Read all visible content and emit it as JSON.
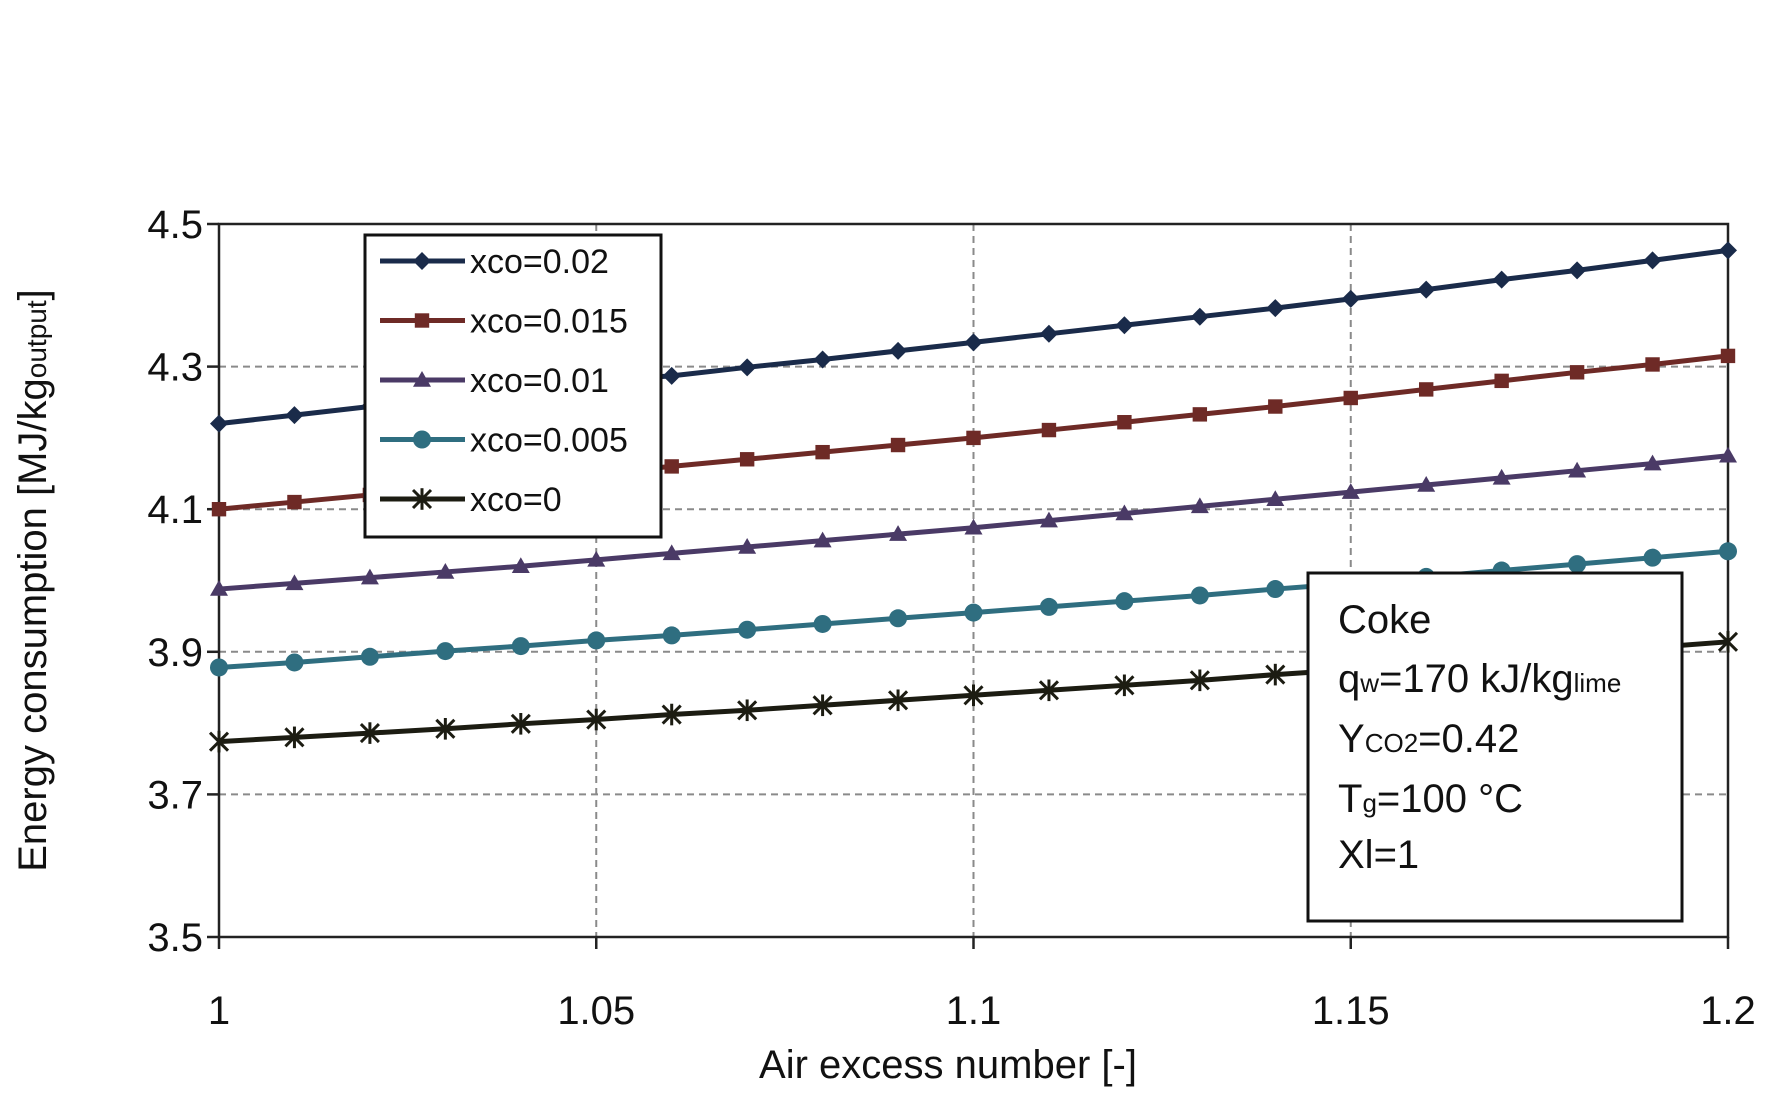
{
  "chart_data": {
    "type": "line",
    "xlabel": "Air excess number [-]",
    "ylabel": {
      "main": "Energy consumption [MJ/kg",
      "sub": "output",
      "tail": "]"
    },
    "xlim": [
      1,
      1.2
    ],
    "ylim": [
      3.5,
      4.5
    ],
    "xticks": [
      1,
      1.05,
      1.1,
      1.15,
      1.2
    ],
    "xtick_labels": [
      "1",
      "1.05",
      "1.1",
      "1.15",
      "1.2"
    ],
    "yticks": [
      3.5,
      3.7,
      3.9,
      4.1,
      4.3,
      4.5
    ],
    "ytick_labels": [
      "3.5",
      "3.7",
      "3.9",
      "4.1",
      "4.3",
      "4.5"
    ],
    "grid": true,
    "legend_position": "top-left",
    "x": [
      1.0,
      1.01,
      1.02,
      1.03,
      1.04,
      1.05,
      1.06,
      1.07,
      1.08,
      1.09,
      1.1,
      1.11,
      1.12,
      1.13,
      1.14,
      1.15,
      1.16,
      1.17,
      1.18,
      1.19,
      1.2
    ],
    "series": [
      {
        "name": "xco=0.02",
        "color": "#1a2b4a",
        "marker": "diamond",
        "values": [
          4.22,
          4.232,
          4.244,
          4.256,
          4.268,
          4.28,
          4.287,
          4.299,
          4.31,
          4.322,
          4.334,
          4.346,
          4.358,
          4.37,
          4.382,
          4.395,
          4.408,
          4.422,
          4.435,
          4.449,
          4.463
        ]
      },
      {
        "name": "xco=0.015",
        "color": "#6e2a26",
        "marker": "square",
        "values": [
          4.1,
          4.11,
          4.12,
          4.13,
          4.14,
          4.15,
          4.16,
          4.17,
          4.18,
          4.19,
          4.2,
          4.211,
          4.222,
          4.233,
          4.244,
          4.256,
          4.268,
          4.28,
          4.292,
          4.303,
          4.315
        ]
      },
      {
        "name": "xco=0.01",
        "color": "#4a3a66",
        "marker": "triangle",
        "values": [
          3.988,
          3.996,
          4.004,
          4.012,
          4.02,
          4.029,
          4.038,
          4.047,
          4.056,
          4.065,
          4.074,
          4.084,
          4.094,
          4.104,
          4.114,
          4.124,
          4.134,
          4.144,
          4.154,
          4.164,
          4.175
        ]
      },
      {
        "name": "xco=0.005",
        "color": "#2f6e80",
        "marker": "circle",
        "values": [
          3.878,
          3.885,
          3.893,
          3.901,
          3.908,
          3.916,
          3.923,
          3.931,
          3.939,
          3.947,
          3.955,
          3.963,
          3.971,
          3.979,
          3.988,
          3.996,
          4.005,
          4.014,
          4.023,
          4.032,
          4.041
        ]
      },
      {
        "name": "xco=0",
        "color": "#1c1c12",
        "marker": "star",
        "values": [
          3.774,
          3.78,
          3.786,
          3.792,
          3.799,
          3.805,
          3.812,
          3.818,
          3.825,
          3.832,
          3.839,
          3.846,
          3.853,
          3.86,
          3.868,
          3.875,
          3.883,
          3.89,
          3.898,
          3.906,
          3.914
        ]
      }
    ]
  },
  "note_box": {
    "line1": "Coke",
    "line2": {
      "a": "q",
      "sub": "w",
      "b": "=170 kJ/kg",
      "sub2": "lime"
    },
    "line3": {
      "a": "Y",
      "sub": "CO2",
      "b": "=0.42"
    },
    "line4": {
      "a": "T",
      "sub": "g",
      "b": "=100 °C"
    },
    "line5": "Xl=1"
  }
}
